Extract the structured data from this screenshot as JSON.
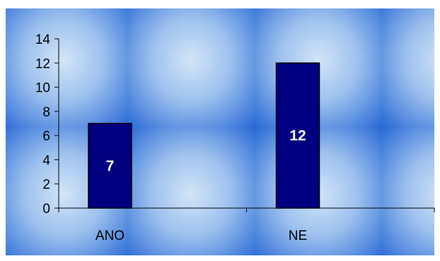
{
  "chart_data": {
    "type": "bar",
    "categories": [
      "ANO",
      "NE"
    ],
    "values": [
      7,
      12
    ],
    "data_labels": [
      "7",
      "12"
    ],
    "yticks": [
      "0",
      "2",
      "4",
      "6",
      "8",
      "10",
      "12",
      "14"
    ],
    "ylim": [
      0,
      14
    ],
    "title": "",
    "xlabel": "",
    "ylabel": "",
    "grid": false,
    "legend": "none",
    "colors": {
      "bar_fill": "#000080",
      "bar_stroke": "#000000",
      "data_label": "#ffffff",
      "axis": "#000000",
      "tick_label": "#000000",
      "background_light": "#d3e5f7",
      "background_dark": "#2a6bd6"
    }
  }
}
